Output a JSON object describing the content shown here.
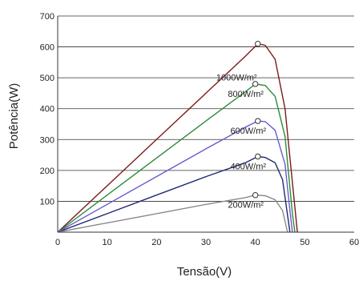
{
  "chart_data": {
    "type": "line",
    "title": "",
    "xlabel": "Tensão(V)",
    "ylabel": "Potência(W)",
    "xlim": [
      0,
      60
    ],
    "ylim": [
      0,
      700
    ],
    "xticks": [
      "0",
      "10",
      "20",
      "30",
      "40",
      "50",
      "60"
    ],
    "yticks": [
      "100",
      "200",
      "300",
      "400",
      "500",
      "600",
      "700"
    ],
    "grid": "horizontal",
    "series": [
      {
        "name": "1000W/m²",
        "color": "#7a1a1a",
        "x": [
          0,
          10,
          20,
          30,
          38,
          40.5,
          42,
          44,
          46,
          48,
          48.5
        ],
        "y": [
          0,
          150,
          300,
          450,
          570,
          610,
          605,
          560,
          400,
          80,
          0
        ],
        "mpp": [
          40.5,
          610
        ]
      },
      {
        "name": "800W/m²",
        "color": "#2e8a3a",
        "x": [
          0,
          10,
          20,
          30,
          38,
          40,
          42,
          44,
          46,
          47.5,
          48
        ],
        "y": [
          0,
          120,
          240,
          360,
          455,
          480,
          475,
          440,
          310,
          60,
          0
        ],
        "mpp": [
          40,
          480
        ]
      },
      {
        "name": "600W/m²",
        "color": "#6a5acd",
        "x": [
          0,
          10,
          20,
          30,
          38,
          40.5,
          42,
          44,
          46,
          47,
          47.5
        ],
        "y": [
          0,
          90,
          180,
          270,
          340,
          360,
          358,
          330,
          220,
          70,
          0
        ],
        "mpp": [
          40.5,
          360
        ]
      },
      {
        "name": "400W/m²",
        "color": "#1f2a6e",
        "x": [
          0,
          10,
          20,
          30,
          38,
          40.5,
          42,
          44,
          45.5,
          47
        ],
        "y": [
          0,
          60,
          120,
          180,
          225,
          245,
          242,
          225,
          170,
          0
        ],
        "mpp": [
          40.5,
          245
        ]
      },
      {
        "name": "200W/m²",
        "color": "#8a8a8a",
        "x": [
          0,
          10,
          20,
          30,
          38,
          40,
          42,
          44,
          45.5,
          46.5
        ],
        "y": [
          0,
          30,
          60,
          90,
          112,
          120,
          118,
          105,
          70,
          0
        ],
        "mpp": [
          40,
          120
        ]
      }
    ]
  }
}
